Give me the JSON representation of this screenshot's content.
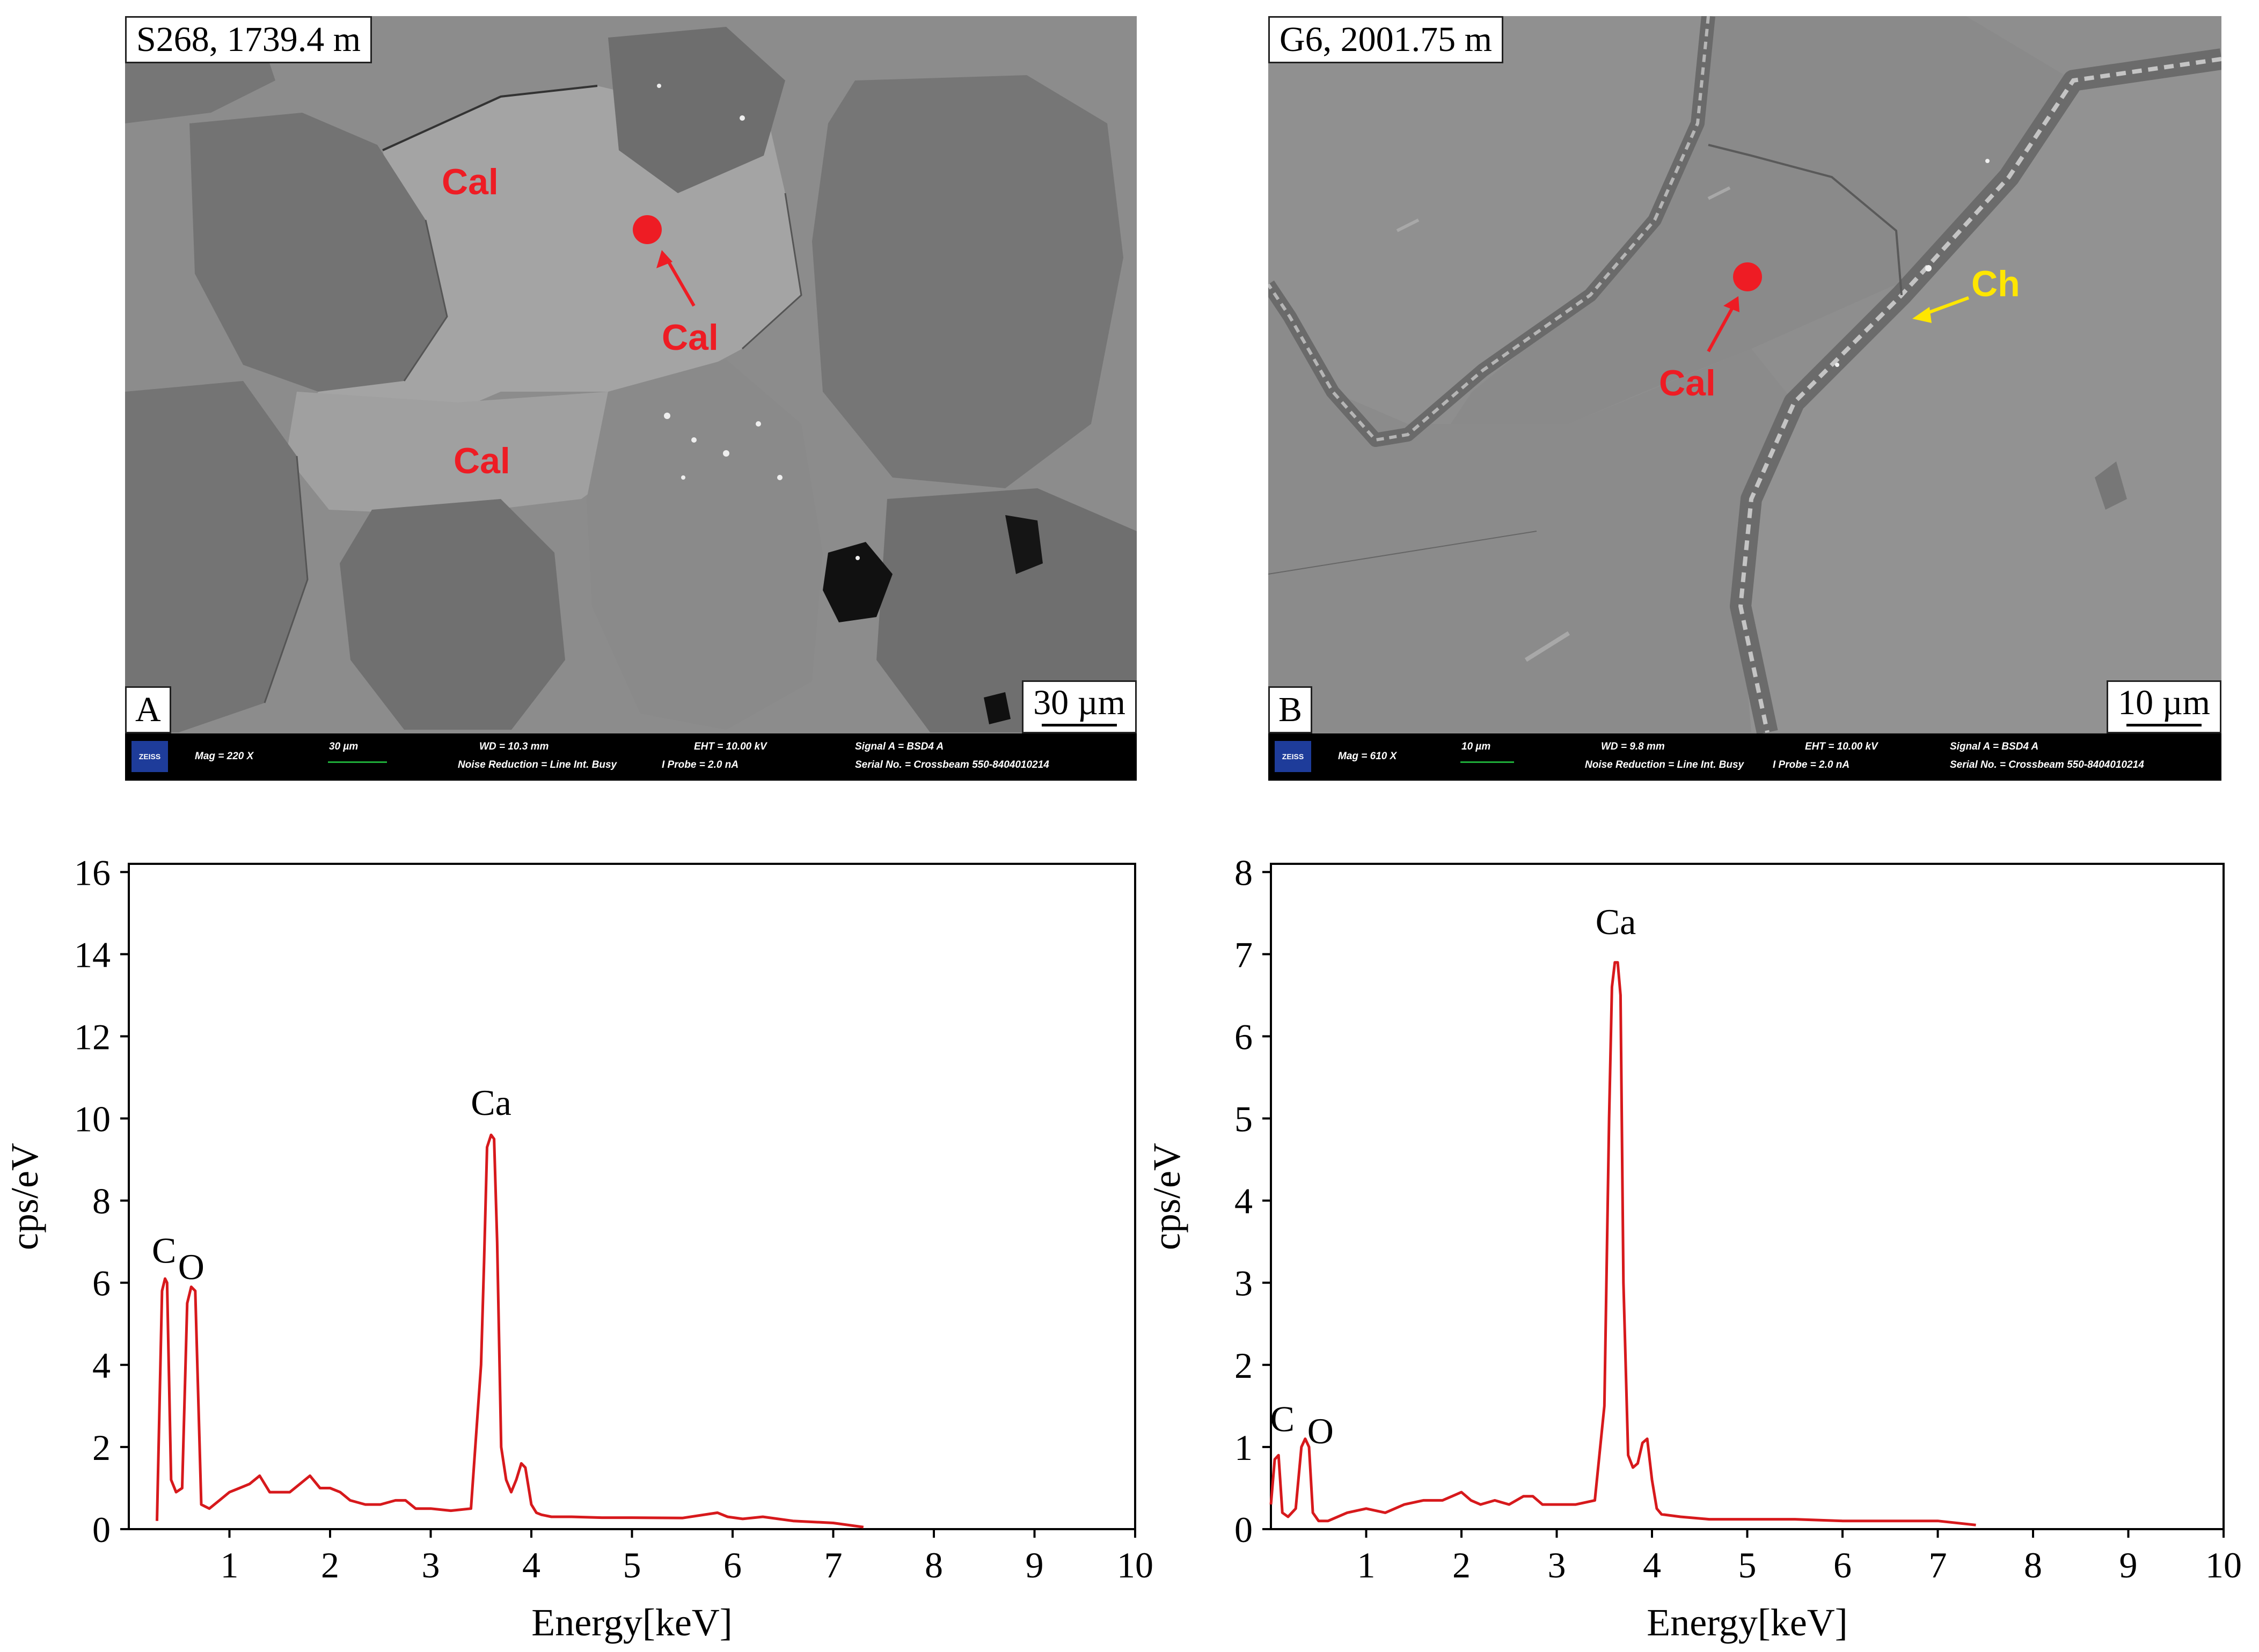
{
  "panelA": {
    "title": "S268, 1739.4 m",
    "letter": "A",
    "scale_label": "30 µm",
    "labels": [
      "Cal",
      "Cal",
      "Cal"
    ],
    "infobar": {
      "logo": "ZEISS",
      "mag": "Mag =    220 X",
      "bar_label": "30 µm",
      "wd": "WD = 10.3 mm",
      "noise": "Noise Reduction = Line Int. Busy",
      "eht": "EHT = 10.00 kV",
      "probe": "I Probe =    2.0 nA",
      "signal": "Signal A = BSD4 A",
      "serial": "Serial No. = Crossbeam 550-8404010214"
    }
  },
  "panelB": {
    "title": "G6, 2001.75 m",
    "letter": "B",
    "scale_label": "10 µm",
    "labels": [
      "Cal",
      "Ch"
    ],
    "infobar": {
      "logo": "ZEISS",
      "mag": "Mag =    610 X",
      "bar_label": "10 µm",
      "wd": "WD = 9.8 mm",
      "noise": "Noise Reduction = Line Int. Busy",
      "eht": "EHT = 10.00 kV",
      "probe": "I Probe =    2.0 nA",
      "signal": "Signal A = BSD4 A",
      "serial": "Serial No. = Crossbeam 550-8404010214"
    }
  },
  "chart_data": [
    {
      "type": "line",
      "xlabel": "Energy[keV]",
      "ylabel": "cps/eV",
      "xlim": [
        0,
        10
      ],
      "ylim": [
        0,
        16.2
      ],
      "xticks": [
        1,
        2,
        3,
        4,
        5,
        6,
        7,
        8,
        9,
        10
      ],
      "yticks": [
        0,
        2,
        4,
        6,
        8,
        10,
        12,
        14,
        16
      ],
      "grid": false,
      "line_color": "#d7191c",
      "x": [
        0.28,
        0.33,
        0.36,
        0.38,
        0.42,
        0.47,
        0.53,
        0.58,
        0.62,
        0.66,
        0.72,
        0.8,
        0.9,
        1.0,
        1.1,
        1.2,
        1.3,
        1.4,
        1.5,
        1.6,
        1.7,
        1.8,
        1.9,
        2.0,
        2.1,
        2.2,
        2.35,
        2.5,
        2.65,
        2.75,
        2.85,
        3.0,
        3.2,
        3.4,
        3.5,
        3.53,
        3.56,
        3.6,
        3.63,
        3.66,
        3.7,
        3.75,
        3.8,
        3.85,
        3.9,
        3.94,
        4.0,
        4.05,
        4.1,
        4.2,
        4.4,
        4.7,
        5.0,
        5.5,
        5.85,
        5.95,
        6.1,
        6.3,
        6.6,
        7.0,
        7.3
      ],
      "y": [
        0.2,
        5.8,
        6.1,
        6.0,
        1.2,
        0.9,
        1.0,
        5.5,
        5.9,
        5.8,
        0.6,
        0.5,
        0.7,
        0.9,
        1.0,
        1.1,
        1.3,
        0.9,
        0.9,
        0.9,
        1.1,
        1.3,
        1.0,
        1.0,
        0.9,
        0.7,
        0.6,
        0.6,
        0.7,
        0.7,
        0.5,
        0.5,
        0.45,
        0.5,
        4.0,
        6.5,
        9.3,
        9.6,
        9.5,
        7.0,
        2.0,
        1.2,
        0.9,
        1.2,
        1.6,
        1.5,
        0.6,
        0.4,
        0.35,
        0.3,
        0.3,
        0.28,
        0.28,
        0.27,
        0.4,
        0.3,
        0.25,
        0.3,
        0.2,
        0.15,
        0.05
      ],
      "annotations": [
        {
          "text": "C",
          "x": 0.35,
          "y": 6.2
        },
        {
          "text": "O",
          "x": 0.62,
          "y": 5.8
        },
        {
          "text": "Ca",
          "x": 3.6,
          "y": 9.8
        }
      ]
    },
    {
      "type": "line",
      "xlabel": "Energy[keV]",
      "ylabel": "cps/eV",
      "xlim": [
        0,
        10
      ],
      "ylim": [
        0,
        8.1
      ],
      "xticks": [
        1,
        2,
        3,
        4,
        5,
        6,
        7,
        8,
        9,
        10
      ],
      "yticks": [
        0,
        1,
        2,
        3,
        4,
        5,
        6,
        7,
        8
      ],
      "grid": false,
      "line_color": "#d7191c",
      "x": [
        0.0,
        0.04,
        0.08,
        0.12,
        0.18,
        0.26,
        0.32,
        0.36,
        0.4,
        0.44,
        0.5,
        0.6,
        0.8,
        1.0,
        1.2,
        1.4,
        1.6,
        1.8,
        1.9,
        2.0,
        2.1,
        2.2,
        2.35,
        2.5,
        2.65,
        2.75,
        2.85,
        3.0,
        3.2,
        3.4,
        3.5,
        3.55,
        3.58,
        3.61,
        3.64,
        3.67,
        3.7,
        3.75,
        3.8,
        3.85,
        3.9,
        3.95,
        4.0,
        4.05,
        4.1,
        4.3,
        4.6,
        5.0,
        5.5,
        6.0,
        6.5,
        7.0,
        7.4
      ],
      "y": [
        0.3,
        0.85,
        0.9,
        0.2,
        0.15,
        0.25,
        1.0,
        1.1,
        1.0,
        0.2,
        0.1,
        0.1,
        0.2,
        0.25,
        0.2,
        0.3,
        0.35,
        0.35,
        0.4,
        0.45,
        0.35,
        0.3,
        0.35,
        0.3,
        0.4,
        0.4,
        0.3,
        0.3,
        0.3,
        0.35,
        1.5,
        5.0,
        6.6,
        6.9,
        6.9,
        6.5,
        3.0,
        0.9,
        0.75,
        0.8,
        1.05,
        1.1,
        0.6,
        0.25,
        0.18,
        0.15,
        0.12,
        0.12,
        0.12,
        0.1,
        0.1,
        0.1,
        0.05
      ],
      "annotations": [
        {
          "text": "C",
          "x": 0.12,
          "y": 1.05
        },
        {
          "text": "O",
          "x": 0.52,
          "y": 0.9
        },
        {
          "text": "Ca",
          "x": 3.62,
          "y": 7.1
        }
      ]
    }
  ]
}
